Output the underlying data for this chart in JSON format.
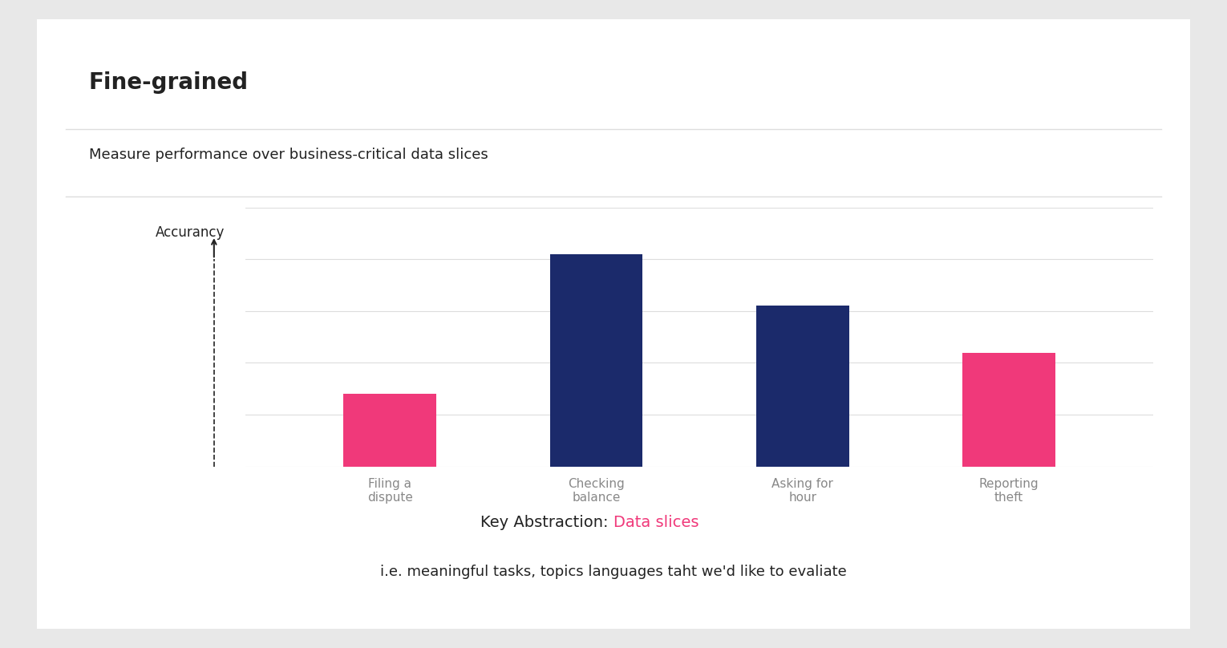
{
  "title": "Fine-grained",
  "subtitle": "Measure performance over business-critical data slices",
  "ylabel": "Accurancy",
  "categories": [
    "Filing a\ndispute",
    "Checking\nbalance",
    "Asking for\nhour",
    "Reporting\ntheft"
  ],
  "values": [
    0.28,
    0.82,
    0.62,
    0.44
  ],
  "bar_colors": [
    "#F0397A",
    "#1B2A6B",
    "#1B2A6B",
    "#F0397A"
  ],
  "background_color": "#E8E8E8",
  "card_color": "#FFFFFF",
  "annotation_black": "Key Abstraction: ",
  "annotation_pink": "Data slices",
  "annotation_sub": "i.e. meaningful tasks, topics languages taht we'd like to evaliate",
  "pink_color": "#F0397A",
  "text_color": "#222222",
  "tick_label_color": "#888888",
  "grid_color": "#DDDDDD",
  "ylim": [
    0,
    1.0
  ],
  "bar_width": 0.45,
  "title_fontsize": 20,
  "subtitle_fontsize": 13,
  "tick_fontsize": 11,
  "annot_fontsize": 14,
  "annot_sub_fontsize": 13
}
